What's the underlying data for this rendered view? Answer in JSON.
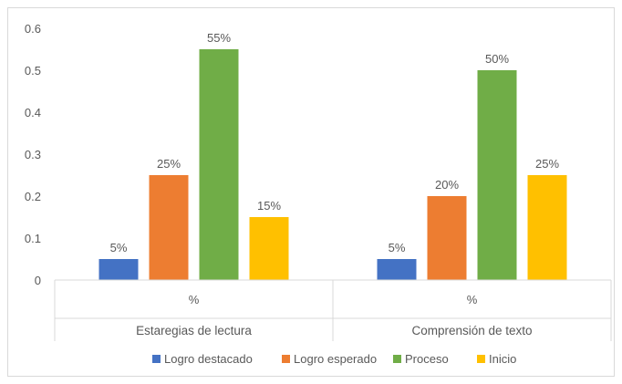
{
  "chart_data": {
    "type": "bar",
    "title": "",
    "ylabel": "",
    "xlabel": "",
    "ylim": [
      0,
      0.6
    ],
    "yticks": [
      "0",
      "0.1",
      "0.2",
      "0.3",
      "0.4",
      "0.5",
      "0.6"
    ],
    "grid": false,
    "legend_position": "bottom",
    "groups": [
      {
        "sublabel": "%",
        "label": "Estaregias de lectura"
      },
      {
        "sublabel": "%",
        "label": "Comprensión de texto"
      }
    ],
    "series": [
      {
        "name": "Logro destacado",
        "color": "#4472C4",
        "values": [
          0.05,
          0.05
        ],
        "labels": [
          "5%",
          "5%"
        ]
      },
      {
        "name": "Logro esperado",
        "color": "#ED7D31",
        "values": [
          0.25,
          0.2
        ],
        "labels": [
          "25%",
          "20%"
        ]
      },
      {
        "name": "Proceso",
        "color": "#70AD47",
        "values": [
          0.55,
          0.5
        ],
        "labels": [
          "55%",
          "50%"
        ]
      },
      {
        "name": "Inicio",
        "color": "#FFC000",
        "values": [
          0.15,
          0.25
        ],
        "labels": [
          "15%",
          "25%"
        ]
      }
    ]
  }
}
